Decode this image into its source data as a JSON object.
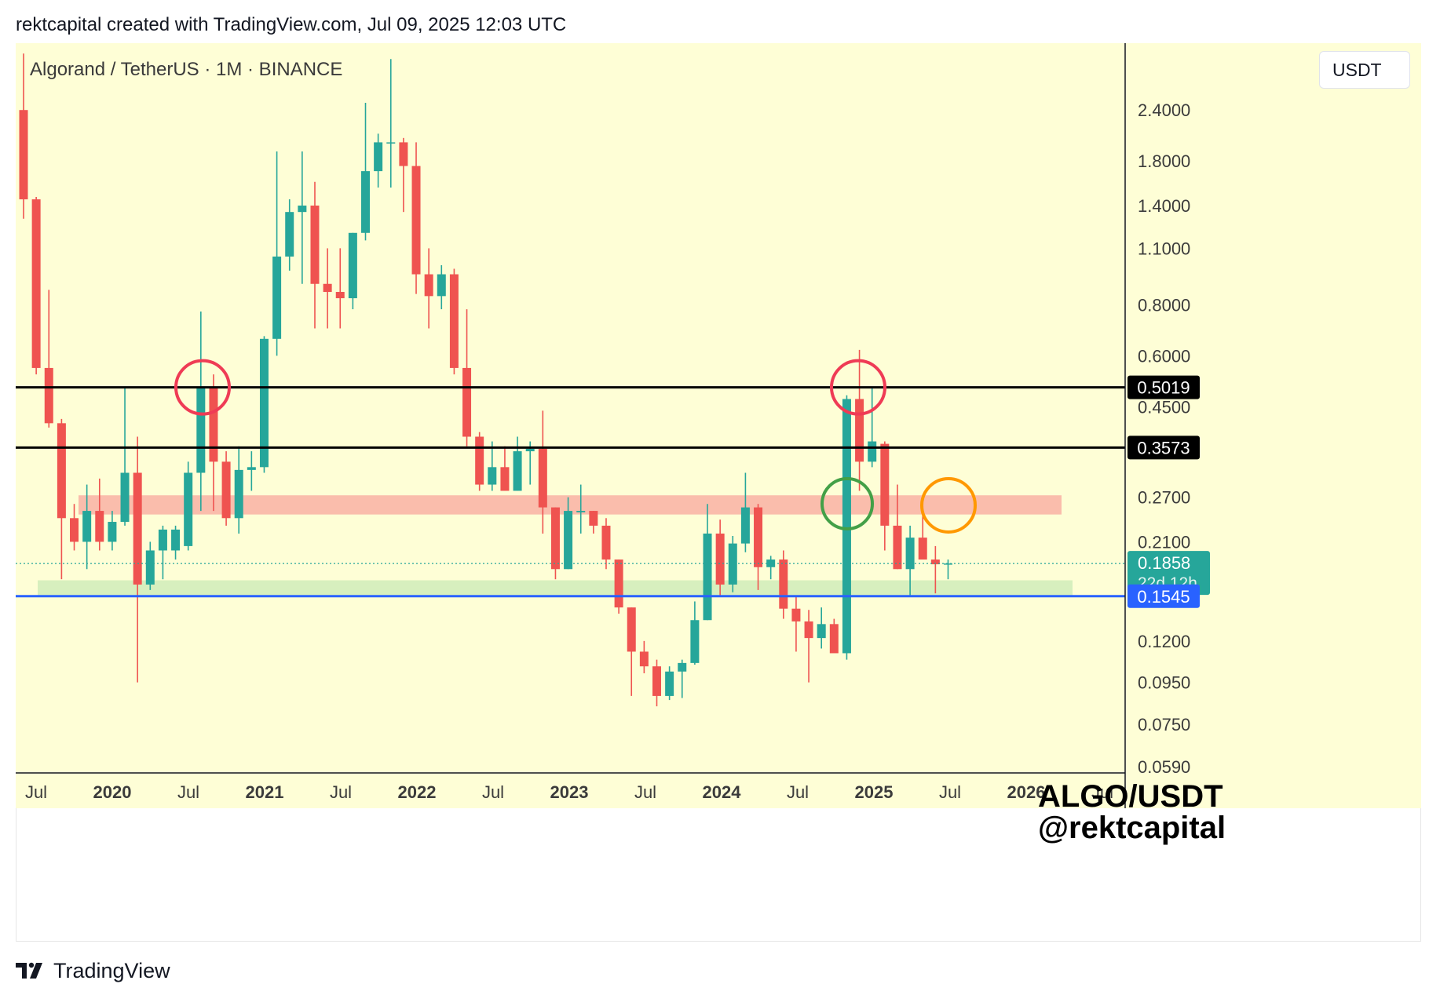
{
  "header": {
    "text": "rektcapital created with TradingView.com, Jul 09, 2025 12:03 UTC"
  },
  "chart_title": "Algorand / TetherUS · 1M · BINANCE",
  "currency_button": "USDT",
  "watermark": {
    "line1": "ALGO/USDT",
    "line2": "@rektcapital"
  },
  "footer": {
    "brand": "TradingView",
    "logo_icon": "tradingview-logo-icon"
  },
  "colors": {
    "background": "#fefed6",
    "up": "#26a69a",
    "down": "#ef5350",
    "resistance_zone": "#f9b2a4",
    "support_zone": "#d3edbb",
    "horizontal_level": "#000000",
    "support_line": "#2962ff",
    "circle_red": "#ef3b55",
    "circle_green": "#43a047",
    "circle_orange": "#ff9800"
  },
  "chart_data": {
    "type": "candlestick",
    "y_scale": "log",
    "ylim": [
      0.057,
      3.5
    ],
    "y_ticks": [
      "2.4000",
      "1.8000",
      "1.4000",
      "1.1000",
      "0.8000",
      "0.6000",
      "0.4500",
      "0.2700",
      "0.2100",
      "0.1200",
      "0.0950",
      "0.0750",
      "0.0590"
    ],
    "x_ticks": [
      "Jul",
      "2020",
      "Jul",
      "2021",
      "Jul",
      "2022",
      "Jul",
      "2023",
      "Jul",
      "2024",
      "Jul",
      "2025",
      "Jul",
      "2026",
      "Jul"
    ],
    "candles": [
      {
        "o": 2.4,
        "h": 3.3,
        "l": 1.3,
        "c": 1.45
      },
      {
        "o": 1.45,
        "h": 1.47,
        "l": 0.54,
        "c": 0.56
      },
      {
        "o": 0.56,
        "h": 0.87,
        "l": 0.4,
        "c": 0.41
      },
      {
        "o": 0.41,
        "h": 0.42,
        "l": 0.17,
        "c": 0.24
      },
      {
        "o": 0.24,
        "h": 0.26,
        "l": 0.2,
        "c": 0.21
      },
      {
        "o": 0.21,
        "h": 0.29,
        "l": 0.18,
        "c": 0.25
      },
      {
        "o": 0.25,
        "h": 0.3,
        "l": 0.2,
        "c": 0.21
      },
      {
        "o": 0.21,
        "h": 0.25,
        "l": 0.2,
        "c": 0.235
      },
      {
        "o": 0.235,
        "h": 0.5,
        "l": 0.23,
        "c": 0.31
      },
      {
        "o": 0.31,
        "h": 0.38,
        "l": 0.095,
        "c": 0.165
      },
      {
        "o": 0.165,
        "h": 0.21,
        "l": 0.16,
        "c": 0.2
      },
      {
        "o": 0.2,
        "h": 0.23,
        "l": 0.17,
        "c": 0.225
      },
      {
        "o": 0.2,
        "h": 0.23,
        "l": 0.19,
        "c": 0.225
      },
      {
        "o": 0.205,
        "h": 0.33,
        "l": 0.2,
        "c": 0.31
      },
      {
        "o": 0.31,
        "h": 0.77,
        "l": 0.25,
        "c": 0.5
      },
      {
        "o": 0.5,
        "h": 0.54,
        "l": 0.25,
        "c": 0.33
      },
      {
        "o": 0.33,
        "h": 0.35,
        "l": 0.23,
        "c": 0.24
      },
      {
        "o": 0.24,
        "h": 0.36,
        "l": 0.22,
        "c": 0.315
      },
      {
        "o": 0.315,
        "h": 0.35,
        "l": 0.28,
        "c": 0.32
      },
      {
        "o": 0.32,
        "h": 0.67,
        "l": 0.31,
        "c": 0.66
      },
      {
        "o": 0.66,
        "h": 1.9,
        "l": 0.6,
        "c": 1.05
      },
      {
        "o": 1.05,
        "h": 1.45,
        "l": 0.97,
        "c": 1.35
      },
      {
        "o": 1.35,
        "h": 1.9,
        "l": 0.9,
        "c": 1.4
      },
      {
        "o": 1.4,
        "h": 1.6,
        "l": 0.7,
        "c": 0.9
      },
      {
        "o": 0.9,
        "h": 1.1,
        "l": 0.7,
        "c": 0.86
      },
      {
        "o": 0.86,
        "h": 1.1,
        "l": 0.7,
        "c": 0.83
      },
      {
        "o": 0.83,
        "h": 1.2,
        "l": 0.78,
        "c": 1.2
      },
      {
        "o": 1.2,
        "h": 2.5,
        "l": 1.15,
        "c": 1.7
      },
      {
        "o": 1.7,
        "h": 2.1,
        "l": 1.55,
        "c": 2.0
      },
      {
        "o": 2.0,
        "h": 3.2,
        "l": 1.55,
        "c": 2.0
      },
      {
        "o": 2.0,
        "h": 2.05,
        "l": 1.35,
        "c": 1.75
      },
      {
        "o": 1.75,
        "h": 2.0,
        "l": 0.85,
        "c": 0.95
      },
      {
        "o": 0.95,
        "h": 1.1,
        "l": 0.7,
        "c": 0.84
      },
      {
        "o": 0.84,
        "h": 1.0,
        "l": 0.78,
        "c": 0.95
      },
      {
        "o": 0.95,
        "h": 0.98,
        "l": 0.54,
        "c": 0.56
      },
      {
        "o": 0.56,
        "h": 0.78,
        "l": 0.36,
        "c": 0.38
      },
      {
        "o": 0.38,
        "h": 0.39,
        "l": 0.28,
        "c": 0.29
      },
      {
        "o": 0.29,
        "h": 0.37,
        "l": 0.28,
        "c": 0.32
      },
      {
        "o": 0.32,
        "h": 0.36,
        "l": 0.28,
        "c": 0.28
      },
      {
        "o": 0.28,
        "h": 0.38,
        "l": 0.28,
        "c": 0.35
      },
      {
        "o": 0.35,
        "h": 0.37,
        "l": 0.29,
        "c": 0.355
      },
      {
        "o": 0.355,
        "h": 0.44,
        "l": 0.22,
        "c": 0.255
      },
      {
        "o": 0.255,
        "h": 0.255,
        "l": 0.17,
        "c": 0.18
      },
      {
        "o": 0.18,
        "h": 0.27,
        "l": 0.18,
        "c": 0.25
      },
      {
        "o": 0.248,
        "h": 0.29,
        "l": 0.22,
        "c": 0.25
      },
      {
        "o": 0.25,
        "h": 0.25,
        "l": 0.22,
        "c": 0.23
      },
      {
        "o": 0.23,
        "h": 0.24,
        "l": 0.18,
        "c": 0.19
      },
      {
        "o": 0.19,
        "h": 0.19,
        "l": 0.14,
        "c": 0.145
      },
      {
        "o": 0.145,
        "h": 0.145,
        "l": 0.088,
        "c": 0.113
      },
      {
        "o": 0.113,
        "h": 0.12,
        "l": 0.1,
        "c": 0.104
      },
      {
        "o": 0.104,
        "h": 0.108,
        "l": 0.083,
        "c": 0.088
      },
      {
        "o": 0.088,
        "h": 0.104,
        "l": 0.086,
        "c": 0.101
      },
      {
        "o": 0.101,
        "h": 0.108,
        "l": 0.087,
        "c": 0.106
      },
      {
        "o": 0.106,
        "h": 0.15,
        "l": 0.105,
        "c": 0.135
      },
      {
        "o": 0.135,
        "h": 0.26,
        "l": 0.135,
        "c": 0.22
      },
      {
        "o": 0.22,
        "h": 0.238,
        "l": 0.155,
        "c": 0.165
      },
      {
        "o": 0.165,
        "h": 0.217,
        "l": 0.158,
        "c": 0.208
      },
      {
        "o": 0.208,
        "h": 0.31,
        "l": 0.198,
        "c": 0.255
      },
      {
        "o": 0.255,
        "h": 0.26,
        "l": 0.16,
        "c": 0.182
      },
      {
        "o": 0.182,
        "h": 0.194,
        "l": 0.17,
        "c": 0.19
      },
      {
        "o": 0.19,
        "h": 0.2,
        "l": 0.136,
        "c": 0.144
      },
      {
        "o": 0.144,
        "h": 0.155,
        "l": 0.113,
        "c": 0.134
      },
      {
        "o": 0.134,
        "h": 0.143,
        "l": 0.095,
        "c": 0.122
      },
      {
        "o": 0.122,
        "h": 0.145,
        "l": 0.115,
        "c": 0.132
      },
      {
        "o": 0.132,
        "h": 0.136,
        "l": 0.115,
        "c": 0.112
      },
      {
        "o": 0.112,
        "h": 0.48,
        "l": 0.108,
        "c": 0.47
      },
      {
        "o": 0.47,
        "h": 0.62,
        "l": 0.28,
        "c": 0.33
      },
      {
        "o": 0.33,
        "h": 0.5,
        "l": 0.32,
        "c": 0.37
      },
      {
        "o": 0.365,
        "h": 0.37,
        "l": 0.2,
        "c": 0.23
      },
      {
        "o": 0.23,
        "h": 0.29,
        "l": 0.18,
        "c": 0.18
      },
      {
        "o": 0.18,
        "h": 0.23,
        "l": 0.155,
        "c": 0.215
      },
      {
        "o": 0.215,
        "h": 0.26,
        "l": 0.19,
        "c": 0.19
      },
      {
        "o": 0.19,
        "h": 0.205,
        "l": 0.157,
        "c": 0.185
      },
      {
        "o": 0.185,
        "h": 0.19,
        "l": 0.17,
        "c": 0.1858
      }
    ],
    "horizontal_levels": [
      {
        "value": 0.5019,
        "label": "0.5019"
      },
      {
        "value": 0.3573,
        "label": "0.3573"
      }
    ],
    "support_line": {
      "value": 0.1545,
      "label": "0.1545"
    },
    "current_price": {
      "value": 0.1858,
      "label": "0.1858",
      "countdown": "22d 12h"
    },
    "zones": [
      {
        "name": "resistance-zone",
        "low": 0.245,
        "high": 0.273
      },
      {
        "name": "support-zone",
        "low": 0.155,
        "high": 0.169
      }
    ]
  }
}
